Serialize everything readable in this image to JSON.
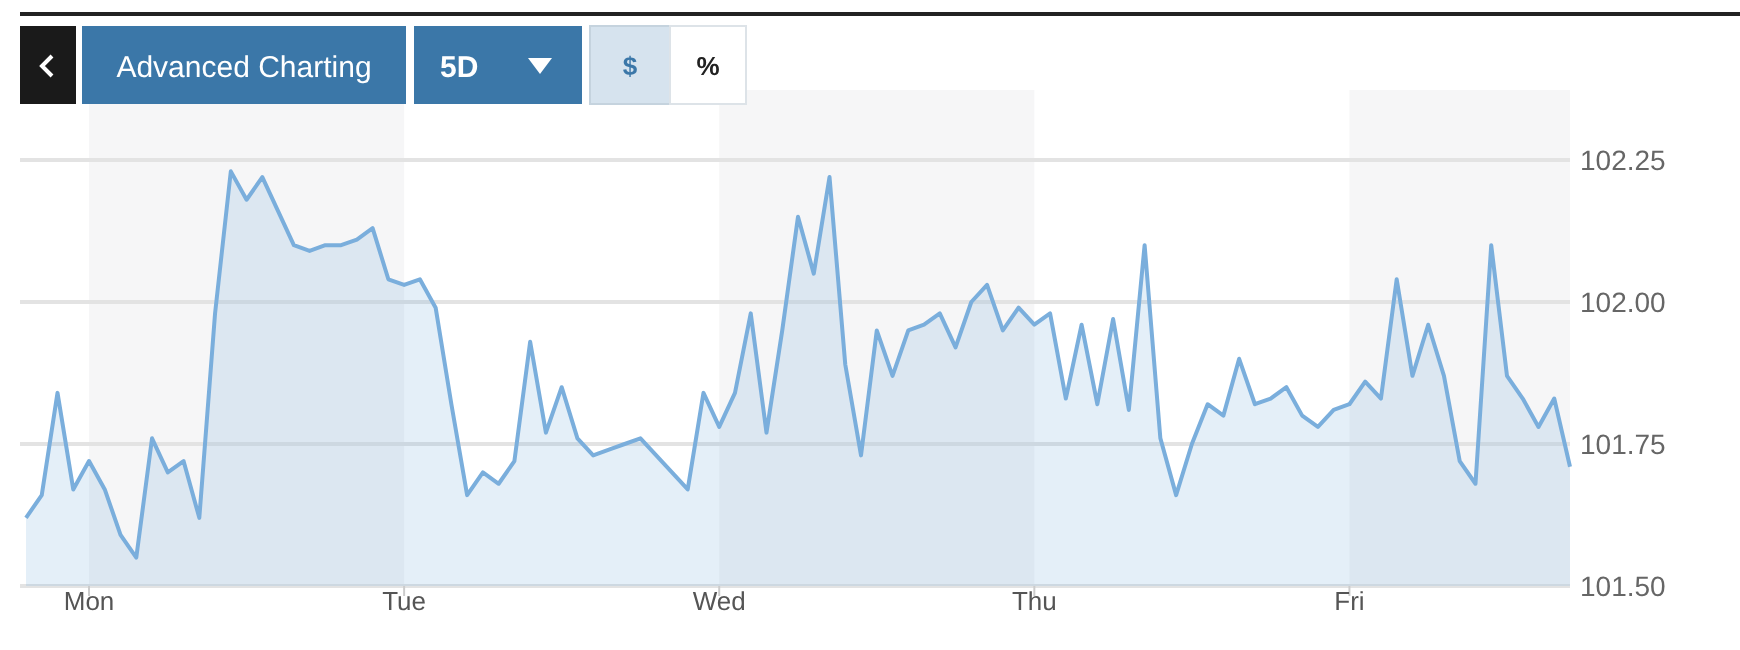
{
  "chart_data": {
    "type": "area",
    "annotations": [
      "Advanced Charting",
      "5D",
      "$",
      "%"
    ],
    "categories": [
      null,
      null,
      null,
      null,
      "Mon",
      null,
      null,
      null,
      null,
      null,
      null,
      null,
      null,
      null,
      null,
      null,
      null,
      null,
      null,
      null,
      null,
      null,
      null,
      null,
      "Tue",
      null,
      null,
      null,
      null,
      null,
      null,
      null,
      null,
      null,
      null,
      null,
      null,
      null,
      null,
      null,
      null,
      null,
      null,
      null,
      "Wed",
      null,
      null,
      null,
      null,
      null,
      null,
      null,
      null,
      null,
      null,
      null,
      null,
      null,
      null,
      null,
      null,
      null,
      null,
      null,
      "Thu",
      null,
      null,
      null,
      null,
      null,
      null,
      null,
      null,
      null,
      null,
      null,
      null,
      null,
      null,
      null,
      null,
      null,
      null,
      null,
      "Fri",
      null,
      null,
      null,
      null,
      null,
      null,
      null,
      null,
      null,
      null,
      null,
      null,
      null,
      null
    ],
    "series": [
      {
        "color": "#7aaedc",
        "values": [
          101.62,
          101.66,
          101.84,
          101.67,
          101.72,
          101.67,
          101.59,
          101.55,
          101.76,
          101.7,
          101.72,
          101.62,
          101.98,
          102.23,
          102.18,
          102.22,
          102.16,
          102.1,
          102.09,
          102.1,
          102.1,
          102.11,
          102.13,
          102.04,
          102.03,
          102.04,
          101.99,
          101.82,
          101.66,
          101.7,
          101.68,
          101.72,
          101.93,
          101.77,
          101.85,
          101.76,
          101.73,
          101.74,
          101.75,
          101.76,
          101.73,
          101.7,
          101.67,
          101.84,
          101.78,
          101.84,
          101.98,
          101.77,
          101.95,
          102.15,
          102.05,
          102.22,
          101.89,
          101.73,
          101.95,
          101.87,
          101.95,
          101.96,
          101.98,
          101.92,
          102.0,
          102.03,
          101.95,
          101.99,
          101.96,
          101.98,
          101.83,
          101.96,
          101.82,
          101.97,
          101.81,
          102.1,
          101.76,
          101.66,
          101.75,
          101.82,
          101.8,
          101.9,
          101.82,
          101.83,
          101.85,
          101.8,
          101.78,
          101.81,
          101.82,
          101.86,
          101.83,
          102.04,
          101.87,
          101.96,
          101.87,
          101.72,
          101.68,
          102.1,
          101.87,
          101.83,
          101.78,
          101.83,
          101.71
        ]
      }
    ],
    "ylim": [
      101.5,
      102.25
    ],
    "yticks": [
      {
        "value": 101.5,
        "label": "101.50"
      },
      101.75,
      {
        "value": 102,
        "label": "102.00"
      },
      102.25
    ],
    "grid": "y"
  }
}
